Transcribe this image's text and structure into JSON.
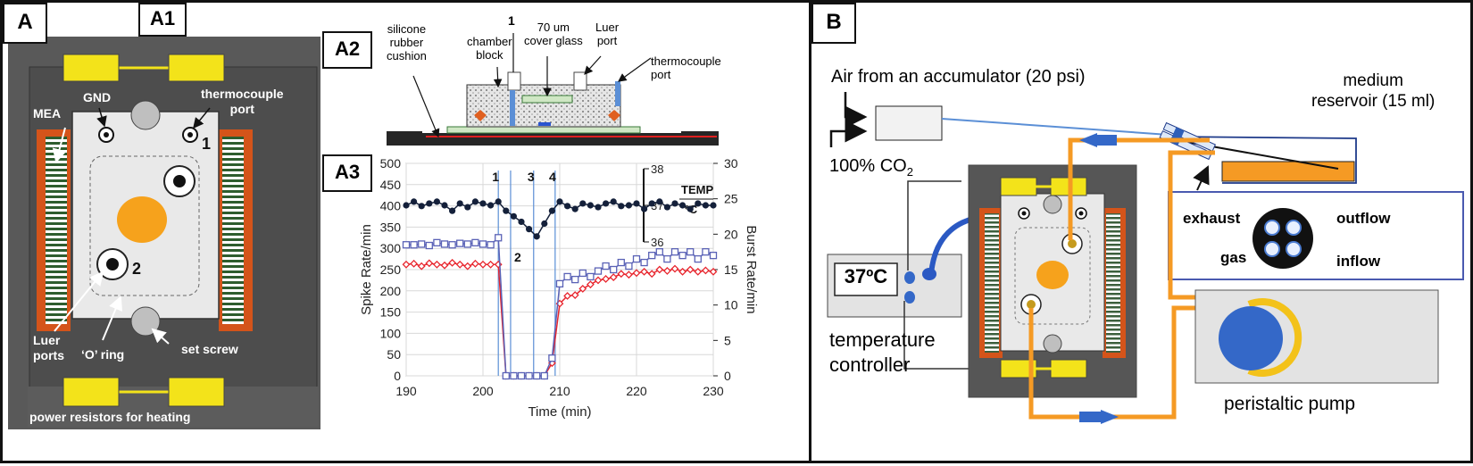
{
  "panel_a": {
    "tag_a": "A",
    "tag_a1": "A1",
    "tag_a2": "A2",
    "tag_a3": "A3",
    "labels": {
      "mea": "MEA",
      "gnd": "GND",
      "thermocouple_port": "thermocouple\nport",
      "port_1": "1",
      "port_2": "2",
      "luer_ports": "Luer\nports",
      "o_ring": "‘O’ ring",
      "set_screw": "set screw",
      "power_resistors": "power resistors for heating"
    },
    "a2_labels": {
      "silicone": "silicone\nrubber\ncushion",
      "chamber": "chamber\nblock",
      "num_1": "1",
      "cover_glass": "70 um\ncover glass",
      "luer_port": "Luer\nport",
      "thermocouple": "thermocouple\nport"
    }
  },
  "chart_data": {
    "type": "line",
    "xlabel": "Time (min)",
    "ylabel": "Spike Rate/min",
    "y2label": "Burst Rate/min",
    "xlim": [
      190,
      230
    ],
    "ylim": [
      0,
      500
    ],
    "y2lim": [
      0,
      30
    ],
    "y3lim": [
      36,
      38
    ],
    "x_ticks": [
      "190",
      "200",
      "210",
      "220",
      "230"
    ],
    "y_ticks": [
      "0",
      "50",
      "100",
      "150",
      "200",
      "250",
      "300",
      "350",
      "400",
      "450",
      "500"
    ],
    "y2_ticks": [
      "0",
      "5",
      "10",
      "15",
      "20",
      "25",
      "30"
    ],
    "temp_ticks": [
      "36",
      "37",
      "38"
    ],
    "temp_label": "TEMP\nºC",
    "event_markers": [
      {
        "label": "1",
        "x": 202
      },
      {
        "label": "2",
        "x": 203.6
      },
      {
        "label": "3",
        "x": 206.6
      },
      {
        "label": "4",
        "x": 209.4
      }
    ],
    "series": [
      {
        "name": "Temperature",
        "axis": "temp",
        "color": "#14203a",
        "marker": "dot",
        "x": [
          190,
          191,
          192,
          193,
          194,
          195,
          196,
          197,
          198,
          199,
          200,
          201,
          202,
          203,
          204,
          205,
          206,
          207,
          208,
          209,
          210,
          211,
          212,
          213,
          214,
          215,
          216,
          217,
          218,
          219,
          220,
          221,
          222,
          223,
          224,
          225,
          226,
          227,
          228,
          229,
          230
        ],
        "values": [
          37.0,
          37.1,
          36.98,
          37.05,
          37.1,
          37.0,
          36.85,
          37.05,
          36.95,
          37.1,
          37.05,
          37.0,
          37.1,
          36.85,
          36.7,
          36.55,
          36.35,
          36.15,
          36.5,
          36.85,
          37.1,
          36.98,
          36.9,
          37.05,
          37.0,
          36.95,
          37.05,
          37.1,
          36.98,
          37.0,
          37.05,
          36.9,
          37.05,
          37.1,
          36.95,
          37.05,
          37.0,
          36.9,
          37.05,
          37.0,
          37.0
        ]
      },
      {
        "name": "Spike Rate",
        "axis": "left",
        "color": "#e8262e",
        "marker": "diamond",
        "x": [
          190,
          191,
          192,
          193,
          194,
          195,
          196,
          197,
          198,
          199,
          200,
          201,
          202,
          203,
          204,
          205,
          206,
          207,
          208,
          209,
          210,
          211,
          212,
          213,
          214,
          215,
          216,
          217,
          218,
          219,
          220,
          221,
          222,
          223,
          224,
          225,
          226,
          227,
          228,
          229,
          230
        ],
        "values": [
          262,
          264,
          258,
          265,
          262,
          260,
          266,
          262,
          258,
          264,
          262,
          262,
          262,
          0,
          0,
          0,
          0,
          0,
          0,
          30,
          170,
          188,
          190,
          205,
          215,
          225,
          228,
          232,
          240,
          238,
          242,
          245,
          240,
          250,
          247,
          252,
          245,
          250,
          245,
          248,
          245
        ]
      },
      {
        "name": "Burst Rate",
        "axis": "right",
        "color": "#5a62b6",
        "marker": "square",
        "x": [
          190,
          191,
          192,
          193,
          194,
          195,
          196,
          197,
          198,
          199,
          200,
          201,
          202,
          203,
          204,
          205,
          206,
          207,
          208,
          209,
          210,
          211,
          212,
          213,
          214,
          215,
          216,
          217,
          218,
          219,
          220,
          221,
          222,
          223,
          224,
          225,
          226,
          227,
          228,
          229,
          230
        ],
        "values": [
          18.5,
          18.5,
          18.6,
          18.4,
          18.8,
          18.6,
          18.5,
          18.7,
          18.6,
          18.8,
          18.6,
          18.5,
          19.5,
          0,
          0,
          0,
          0,
          0,
          0,
          2.5,
          13.0,
          14.0,
          13.6,
          14.5,
          14.0,
          14.8,
          15.5,
          15.0,
          16.0,
          15.5,
          16.5,
          16.0,
          17.0,
          17.5,
          16.5,
          17.5,
          17.0,
          17.5,
          16.5,
          17.5,
          17.0
        ]
      }
    ]
  },
  "panel_b": {
    "tag": "B",
    "air_label": "Air from an accumulator (20 psi)",
    "co2_label": "100% CO",
    "co2_subscript": "2",
    "medium_reservoir": "medium\nreservoir (15 ml)",
    "exhaust": "exhaust",
    "outflow": "outflow",
    "gas": "gas",
    "inflow": "inflow",
    "temperature_display": "37ºC",
    "temperature_controller": "temperature\ncontroller",
    "peristaltic_pump": "peristaltic pump"
  }
}
